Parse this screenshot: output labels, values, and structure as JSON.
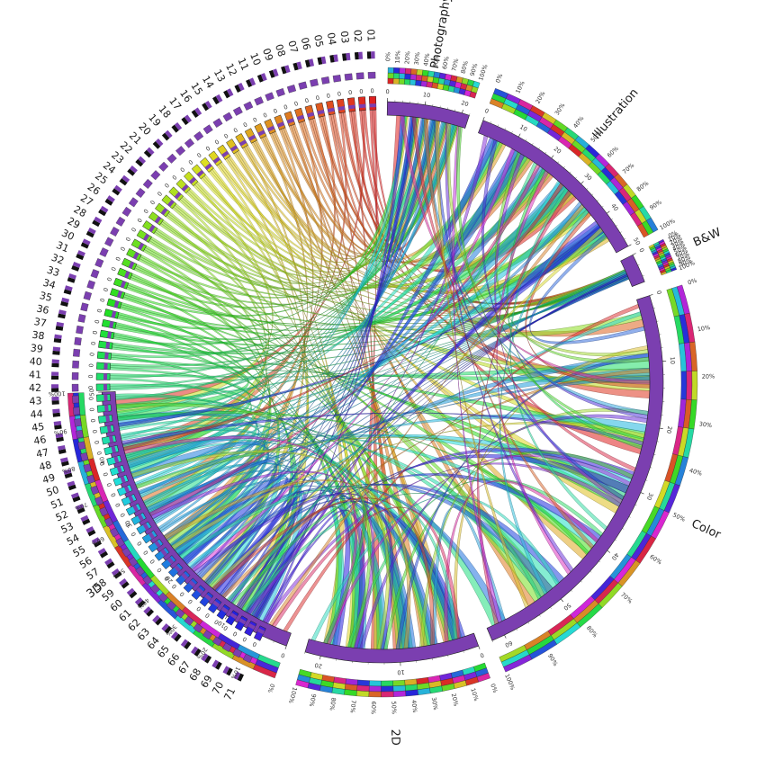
{
  "diagram": {
    "item_labels": [
      "01",
      "02",
      "03",
      "04",
      "05",
      "06",
      "07",
      "08",
      "09",
      "10",
      "11",
      "12",
      "13",
      "14",
      "15",
      "16",
      "17",
      "18",
      "19",
      "20",
      "21",
      "22",
      "23",
      "24",
      "25",
      "26",
      "27",
      "28",
      "29",
      "30",
      "31",
      "32",
      "33",
      "34",
      "35",
      "36",
      "37",
      "38",
      "39",
      "40",
      "41",
      "42",
      "43",
      "44",
      "45",
      "46",
      "47",
      "48",
      "49",
      "50",
      "51",
      "52",
      "53",
      "54",
      "55",
      "56",
      "57",
      "58",
      "59",
      "60",
      "61",
      "62",
      "63",
      "64",
      "65",
      "66",
      "67",
      "68",
      "69",
      "70",
      "71"
    ],
    "item_zero_label": "0",
    "categories": [
      {
        "name": "Photography",
        "ticks": [
          "0",
          "10",
          "20"
        ],
        "max": 22
      },
      {
        "name": "Illustration",
        "ticks": [
          "0",
          "10",
          "20",
          "30",
          "40",
          "50"
        ],
        "max": 50
      },
      {
        "name": "B&W",
        "ticks": [
          "0"
        ],
        "max": 5
      },
      {
        "name": "Color",
        "ticks": [
          "0",
          "10",
          "20",
          "30",
          "40",
          "50",
          "60"
        ],
        "max": 62
      },
      {
        "name": "2D",
        "ticks": [
          "0",
          "10",
          "20"
        ],
        "max": 22
      },
      {
        "name": "3D",
        "ticks": [
          "0",
          "10",
          "20",
          "30",
          "40",
          "50"
        ],
        "max": 50
      }
    ],
    "percent_ticks": [
      "0%",
      "10%",
      "20%",
      "30%",
      "40%",
      "50%",
      "60%",
      "70%",
      "80%",
      "90%",
      "100%"
    ],
    "colors": {
      "category_band": "#7b3fb0",
      "ring_purple": "#7b3fb0",
      "ring_black": "#111111"
    }
  }
}
